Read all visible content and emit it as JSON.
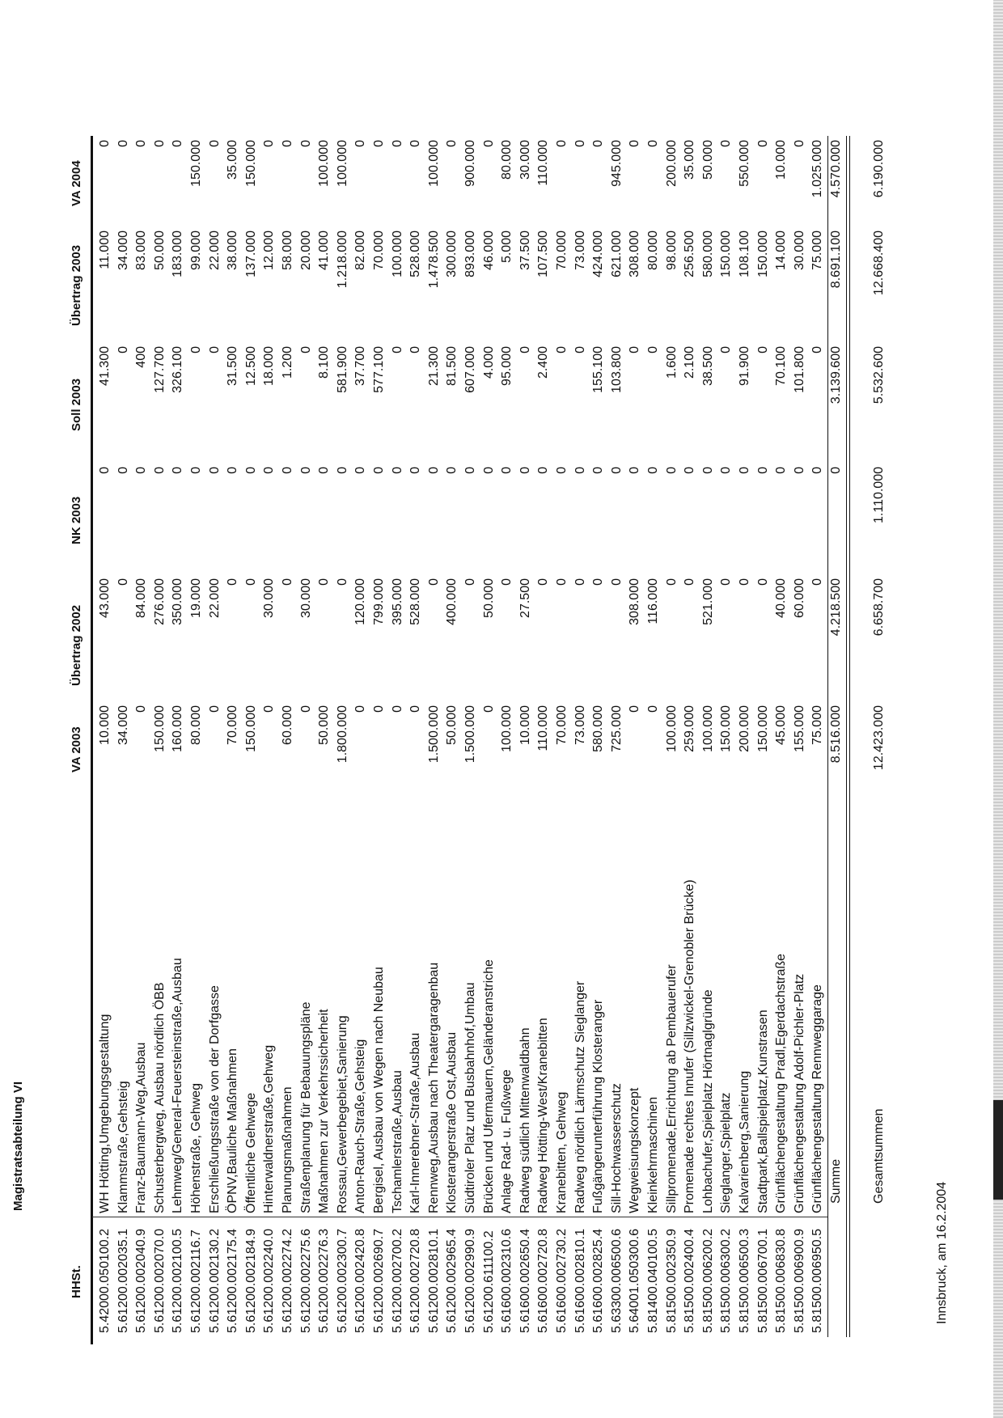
{
  "title": "Magistratsabteilung VI",
  "columns": {
    "hhst": "HHSt.",
    "va2003": "VA 2003",
    "uebertrag2002": "Übertrag 2002",
    "nk2003": "NK 2003",
    "soll2003": "Soll 2003",
    "uebertrag2003": "Übertrag 2003",
    "va2004": "VA 2004"
  },
  "rows": [
    [
      "5.42000.050100.2",
      "WH Hötting,Umgebungsgestaltung",
      "10.000",
      "43.000",
      "0",
      "41.300",
      "11.000",
      "0"
    ],
    [
      "5.61200.002035.1",
      "Klammstraße,Gehsteig",
      "34.000",
      "0",
      "0",
      "0",
      "34.000",
      "0"
    ],
    [
      "5.61200.002040.9",
      "Franz-Baumann-Weg,Ausbau",
      "0",
      "84.000",
      "0",
      "400",
      "83.000",
      "0"
    ],
    [
      "5.61200.002070.0",
      "Schusterbergweg, Ausbau nördlich ÖBB",
      "150.000",
      "276.000",
      "0",
      "127.700",
      "50.000",
      "0"
    ],
    [
      "5.61200.002100.5",
      "Lehmweg/General-Feuersteinstraße,Ausbau",
      "160.000",
      "350.000",
      "0",
      "326.100",
      "183.000",
      "0"
    ],
    [
      "5.61200.002116.7",
      "Höhenstraße, Gehweg",
      "80.000",
      "19.000",
      "0",
      "0",
      "99.000",
      "150.000"
    ],
    [
      "5.61200.002130.2",
      "Erschließungsstraße von der Dorfgasse",
      "0",
      "22.000",
      "0",
      "0",
      "22.000",
      "0"
    ],
    [
      "5.61200.002175.4",
      "ÖPNV,Bauliche Maßnahmen",
      "70.000",
      "0",
      "0",
      "31.500",
      "38.000",
      "35.000"
    ],
    [
      "5.61200.002184.9",
      "Öffentliche Gehwege",
      "150.000",
      "0",
      "0",
      "12.500",
      "137.000",
      "150.000"
    ],
    [
      "5.61200.002240.0",
      "Hinterwaldnerstraße,Gehweg",
      "0",
      "30.000",
      "0",
      "18.000",
      "12.000",
      "0"
    ],
    [
      "5.61200.002274.2",
      "Planungsmaßnahmen",
      "60.000",
      "0",
      "0",
      "1.200",
      "58.000",
      "0"
    ],
    [
      "5.61200.002275.6",
      "Straßenplanung für Bebauungspläne",
      "0",
      "30.000",
      "0",
      "0",
      "20.000",
      "0"
    ],
    [
      "5.61200.002276.3",
      "Maßnahmen zur Verkehrssicherheit",
      "50.000",
      "0",
      "0",
      "8.100",
      "41.000",
      "100.000"
    ],
    [
      "5.61200.002300.7",
      "Rossau,Gewerbegebiet,Sanierung",
      "1.800.000",
      "0",
      "0",
      "581.900",
      "1.218.000",
      "100.000"
    ],
    [
      "5.61200.002420.8",
      "Anton-Rauch-Straße,Gehsteig",
      "0",
      "120.000",
      "0",
      "37.700",
      "82.000",
      "0"
    ],
    [
      "5.61200.002690.7",
      "Bergisel, Ausbau von Wegen nach Neubau",
      "0",
      "799.000",
      "0",
      "577.100",
      "70.000",
      "0"
    ],
    [
      "5.61200.002700.2",
      "Tschamlerstraße,Ausbau",
      "0",
      "395.000",
      "0",
      "0",
      "100.000",
      "0"
    ],
    [
      "5.61200.002720.8",
      "Karl-Innerebner-Straße,Ausbau",
      "0",
      "528.000",
      "0",
      "0",
      "528.000",
      "0"
    ],
    [
      "5.61200.002810.1",
      "Rennweg,Ausbau nach Theatergaragenbau",
      "1.500.000",
      "0",
      "0",
      "21.300",
      "1.478.500",
      "100.000"
    ],
    [
      "5.61200.002965.4",
      "Klosterangerstraße Ost,Ausbau",
      "50.000",
      "400.000",
      "0",
      "81.500",
      "300.000",
      "0"
    ],
    [
      "5.61200.002990.9",
      "Südtiroler Platz und Busbahnhof,Umbau",
      "1.500.000",
      "0",
      "0",
      "607.000",
      "893.000",
      "900.000"
    ],
    [
      "5.61200.611100.2",
      "Brücken und Ufermauern,Geländeranstriche",
      "0",
      "50.000",
      "0",
      "4.000",
      "46.000",
      "0"
    ],
    [
      "5.61600.002310.6",
      "Anlage Rad- u. Fußwege",
      "100.000",
      "0",
      "0",
      "95.000",
      "5.000",
      "80.000"
    ],
    [
      "5.61600.002650.4",
      "Radweg südlich Mittenwaldbahn",
      "10.000",
      "27.500",
      "0",
      "0",
      "37.500",
      "30.000"
    ],
    [
      "5.61600.002720.8",
      "Radweg Hötting-West/Kranebitten",
      "110.000",
      "0",
      "0",
      "2.400",
      "107.500",
      "110.000"
    ],
    [
      "5.61600.002730.2",
      "Kranebitten, Gehweg",
      "70.000",
      "0",
      "0",
      "0",
      "70.000",
      "0"
    ],
    [
      "5.61600.002810.1",
      "Radweg nördlich Lärmschutz Sieglanger",
      "73.000",
      "0",
      "0",
      "0",
      "73.000",
      "0"
    ],
    [
      "5.61600.002825.4",
      "Fußgängerunterführung Klosteranger",
      "580.000",
      "0",
      "0",
      "155.100",
      "424.000",
      "0"
    ],
    [
      "5.63300.006500.6",
      "Sill-Hochwasserschutz",
      "725.000",
      "0",
      "0",
      "103.800",
      "621.000",
      "945.000"
    ],
    [
      "5.64001.050300.6",
      "Wegweisungskonzept",
      "0",
      "308.000",
      "0",
      "0",
      "308.000",
      "0"
    ],
    [
      "5.81400.040100.5",
      "Kleinkehrmaschinen",
      "0",
      "116.000",
      "0",
      "0",
      "80.000",
      "0"
    ],
    [
      "5.81500.002350.9",
      "Sillpromenade,Errichtung ab Pembauerufer",
      "100.000",
      "0",
      "0",
      "1.600",
      "98.000",
      "200.000"
    ],
    [
      "5.81500.002400.4",
      "Promenade rechtes Innufer (Sillzwickel-Grenobler Brücke)",
      "259.000",
      "0",
      "0",
      "2.100",
      "256.500",
      "35.000"
    ],
    [
      "5.81500.006200.2",
      "Lohbachufer,Spielplatz Hörtnaglgründe",
      "100.000",
      "521.000",
      "0",
      "38.500",
      "580.000",
      "50.000"
    ],
    [
      "5.81500.006300.2",
      "Sieglanger,Spielplatz",
      "150.000",
      "0",
      "0",
      "0",
      "150.000",
      "0"
    ],
    [
      "5.81500.006500.3",
      "Kalvarienberg,Sanierung",
      "200.000",
      "0",
      "0",
      "91.900",
      "108.100",
      "550.000"
    ],
    [
      "5.81500.006700.1",
      "Stadtpark,Ballspielplatz,Kunstrasen",
      "150.000",
      "0",
      "0",
      "0",
      "150.000",
      "0"
    ],
    [
      "5.81500.006830.8",
      "Grünflächengestaltung Pradl,Egerdachstraße",
      "45.000",
      "40.000",
      "0",
      "70.100",
      "14.000",
      "10.000"
    ],
    [
      "5.81500.006900.9",
      "Grünflächengestaltung Adolf-Pichler-Platz",
      "155.000",
      "60.000",
      "0",
      "101.800",
      "30.000",
      "0"
    ],
    [
      "5.81500.006950.5",
      "Grünflächengestaltung Rennweggarage",
      "75.000",
      "0",
      "0",
      "0",
      "75.000",
      "1.025.000"
    ]
  ],
  "summe": [
    "Summe",
    "8.516.000",
    "4.218.500",
    "0",
    "3.139.600",
    "8.691.100",
    "4.570.000"
  ],
  "gesamtsummen": [
    "Gesamtsummen",
    "12.423.000",
    "6.658.700",
    "1.110.000",
    "5.532.600",
    "12.668.400",
    "6.190.000"
  ],
  "footer": "Innsbruck, am 16.2.2004"
}
